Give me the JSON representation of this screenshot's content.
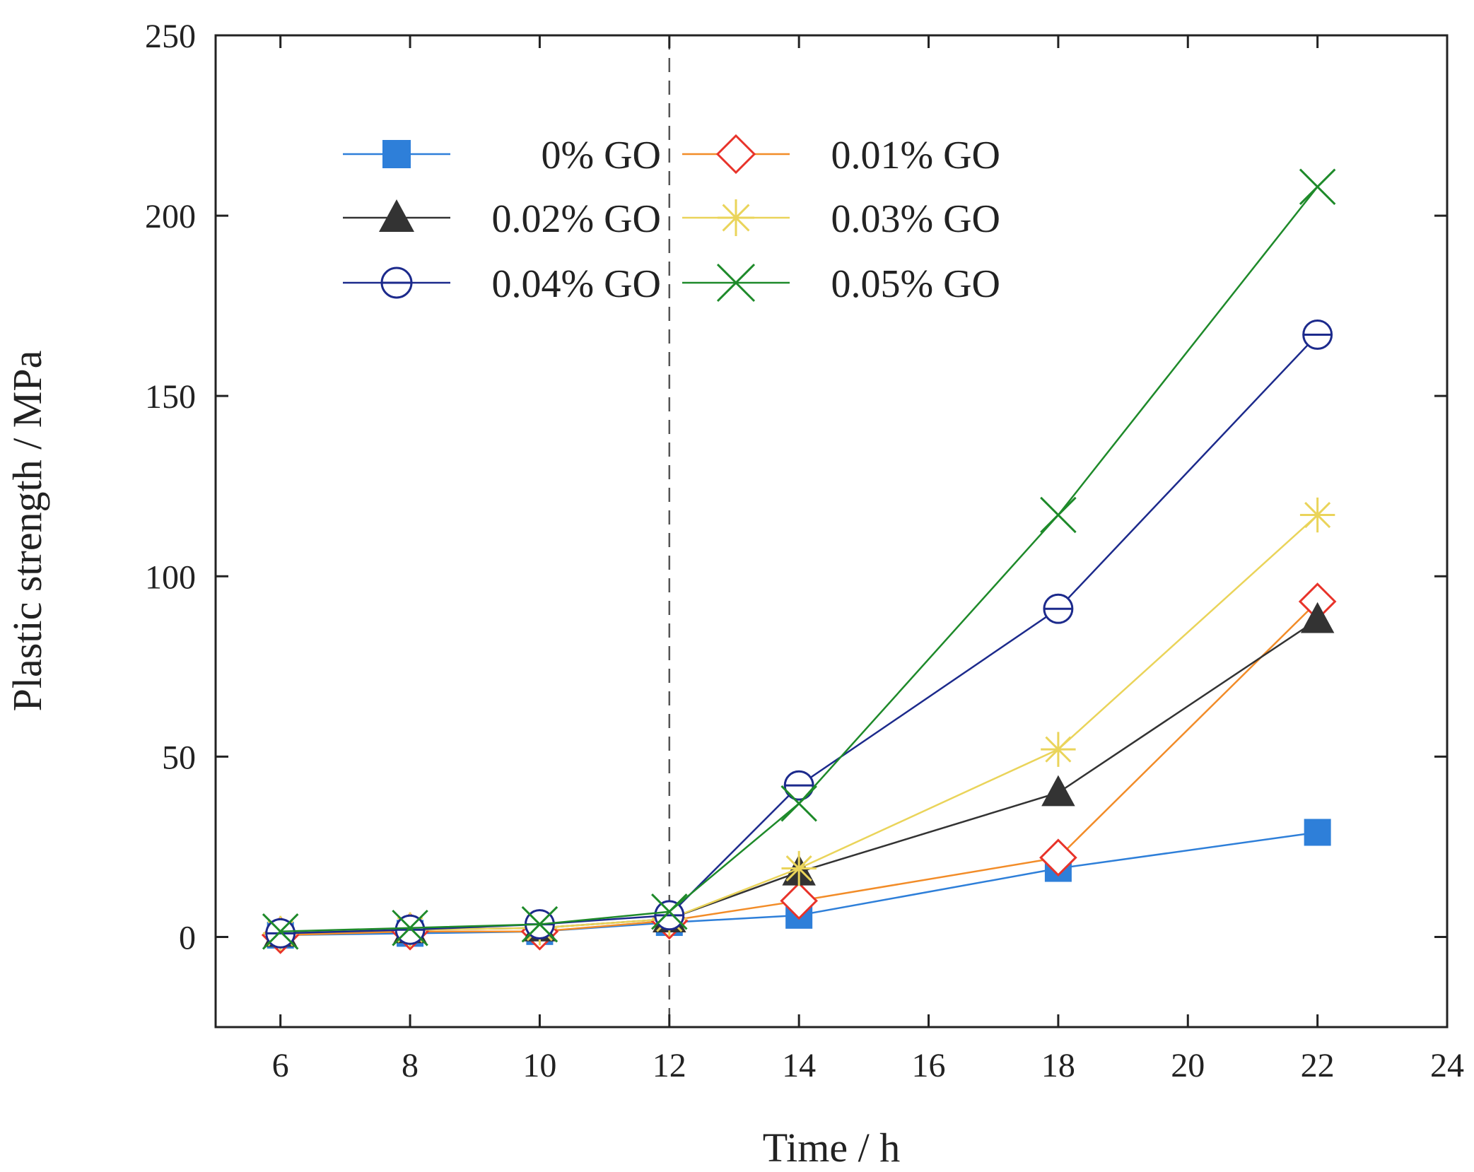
{
  "chart_data": {
    "type": "line",
    "title": "",
    "xlabel": "Time / h",
    "ylabel": "Plastic strength / MPa",
    "xlim": [
      5,
      24
    ],
    "ylim": [
      -25,
      250
    ],
    "xticks": [
      6,
      8,
      10,
      12,
      14,
      16,
      18,
      20,
      22,
      24
    ],
    "yticks": [
      0,
      50,
      100,
      150,
      200,
      250
    ],
    "x": [
      6,
      8,
      10,
      12,
      14,
      18,
      22
    ],
    "reference_line_x": 12,
    "legend_position": "top-left",
    "series": [
      {
        "name": "0% GO",
        "color": "#2e7fd9",
        "marker": "square",
        "values": [
          0.5,
          1,
          1.5,
          4,
          6,
          19,
          29
        ]
      },
      {
        "name": "0.01% GO",
        "color": "#f28c28",
        "marker": "diamond",
        "values": [
          0.5,
          1.5,
          1.5,
          4.5,
          10,
          22,
          93
        ]
      },
      {
        "name": "0.02% GO",
        "color": "#333333",
        "marker": "triangle",
        "values": [
          1,
          2,
          2.5,
          5,
          18,
          40,
          88
        ]
      },
      {
        "name": "0.03% GO",
        "color": "#ead45a",
        "marker": "asterisk",
        "values": [
          1,
          2,
          2.5,
          5,
          19,
          52,
          117
        ]
      },
      {
        "name": "0.04% GO",
        "color": "#1c2a8c",
        "marker": "circle-bar",
        "values": [
          1,
          2,
          3.5,
          6,
          42,
          91,
          167
        ]
      },
      {
        "name": "0.05% GO",
        "color": "#1e8a2a",
        "marker": "x",
        "values": [
          1.5,
          2.5,
          3.5,
          7,
          37,
          117,
          208
        ]
      }
    ]
  }
}
